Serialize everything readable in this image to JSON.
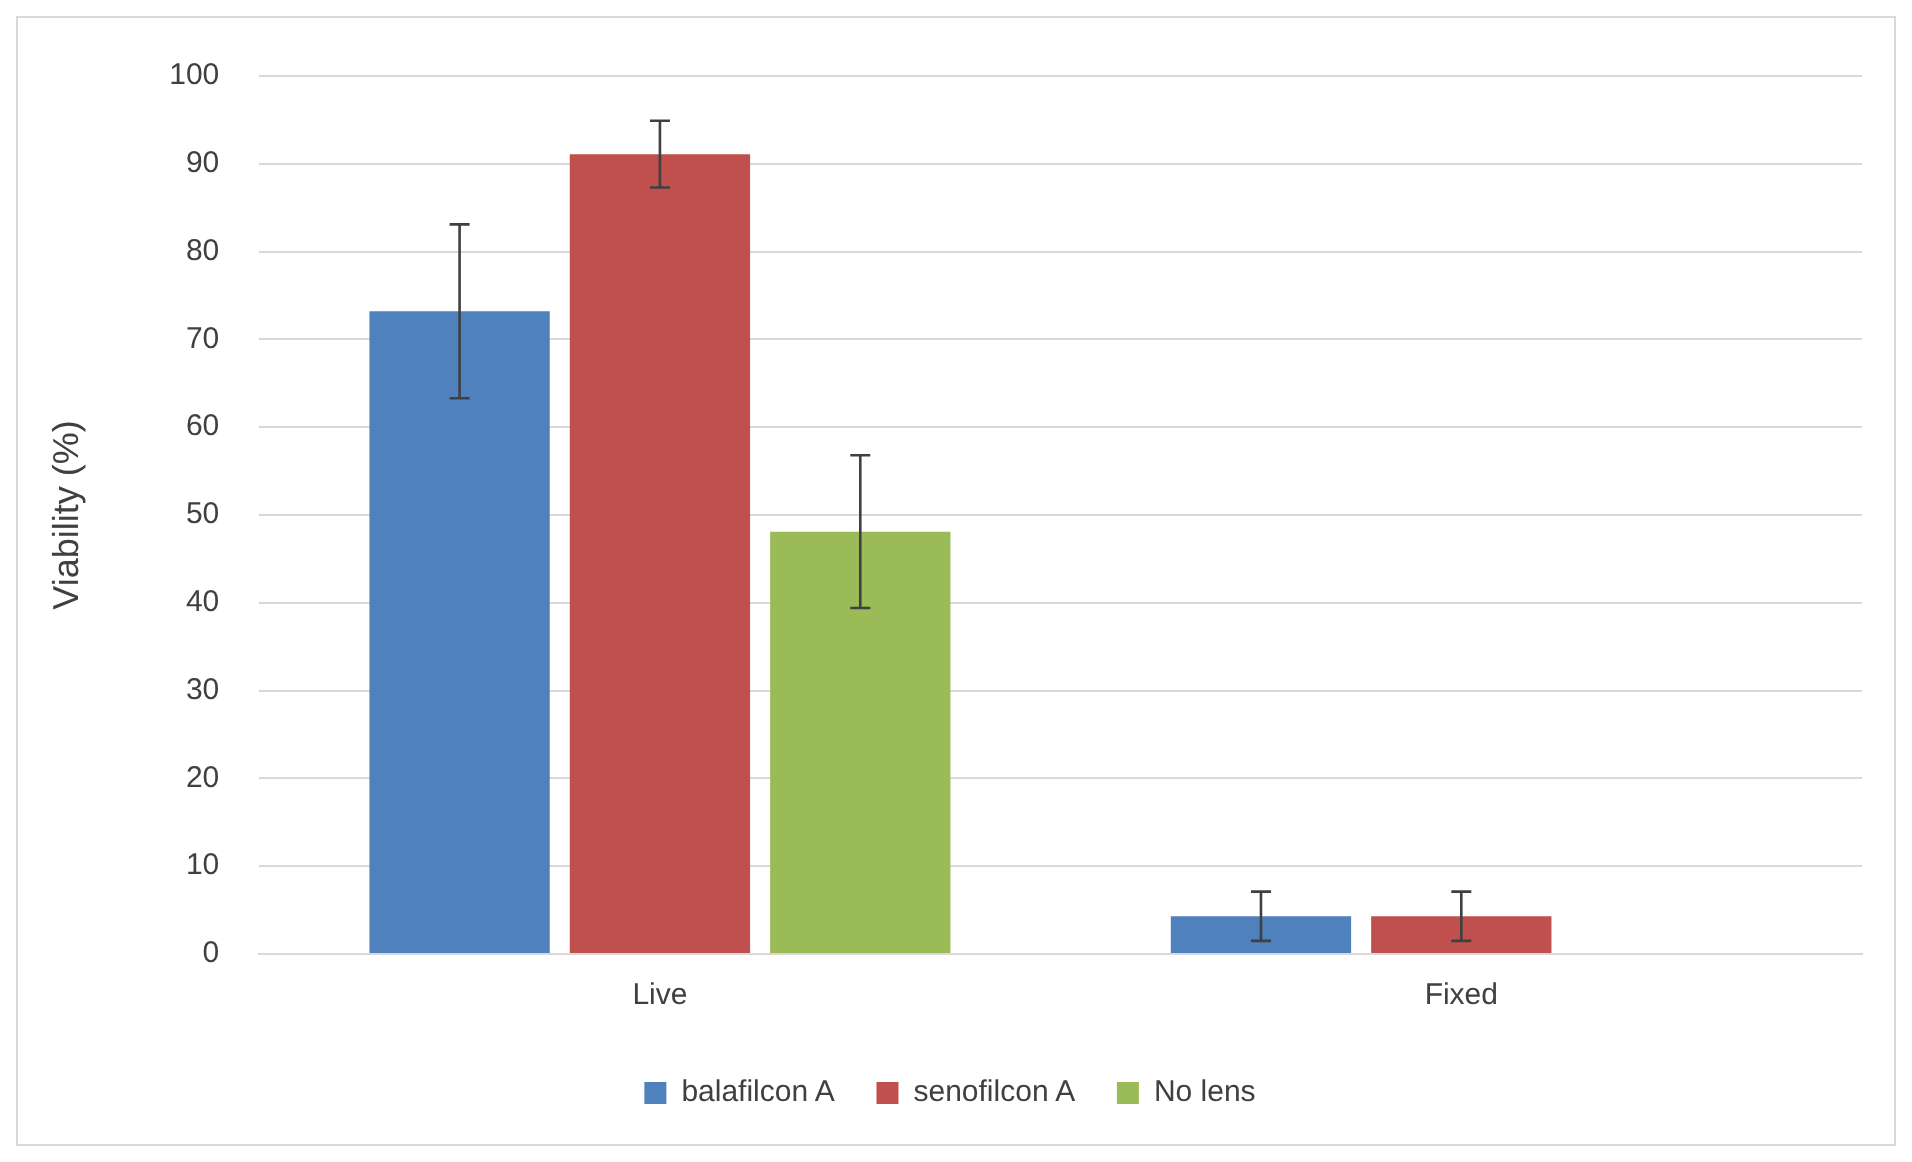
{
  "chart_data": {
    "type": "bar",
    "ylabel": "Viability (%)",
    "categories": [
      "Live",
      "Fixed"
    ],
    "series": [
      {
        "name": "balafilcon A",
        "color": "#4f81bd",
        "values": [
          73.2,
          4.3
        ],
        "errors": [
          9.9,
          2.8
        ]
      },
      {
        "name": "senofilcon A",
        "color": "#c0504d",
        "values": [
          91.1,
          4.3
        ],
        "errors": [
          3.8,
          2.8
        ]
      },
      {
        "name": "No lens",
        "color": "#9bbb59",
        "values": [
          48.1,
          null
        ],
        "errors": [
          8.7,
          null
        ]
      }
    ],
    "ylim": [
      0,
      100
    ],
    "yticks": [
      0,
      10,
      20,
      30,
      40,
      50,
      60,
      70,
      80,
      90,
      100
    ],
    "grid": "y",
    "legend": "bottom"
  }
}
